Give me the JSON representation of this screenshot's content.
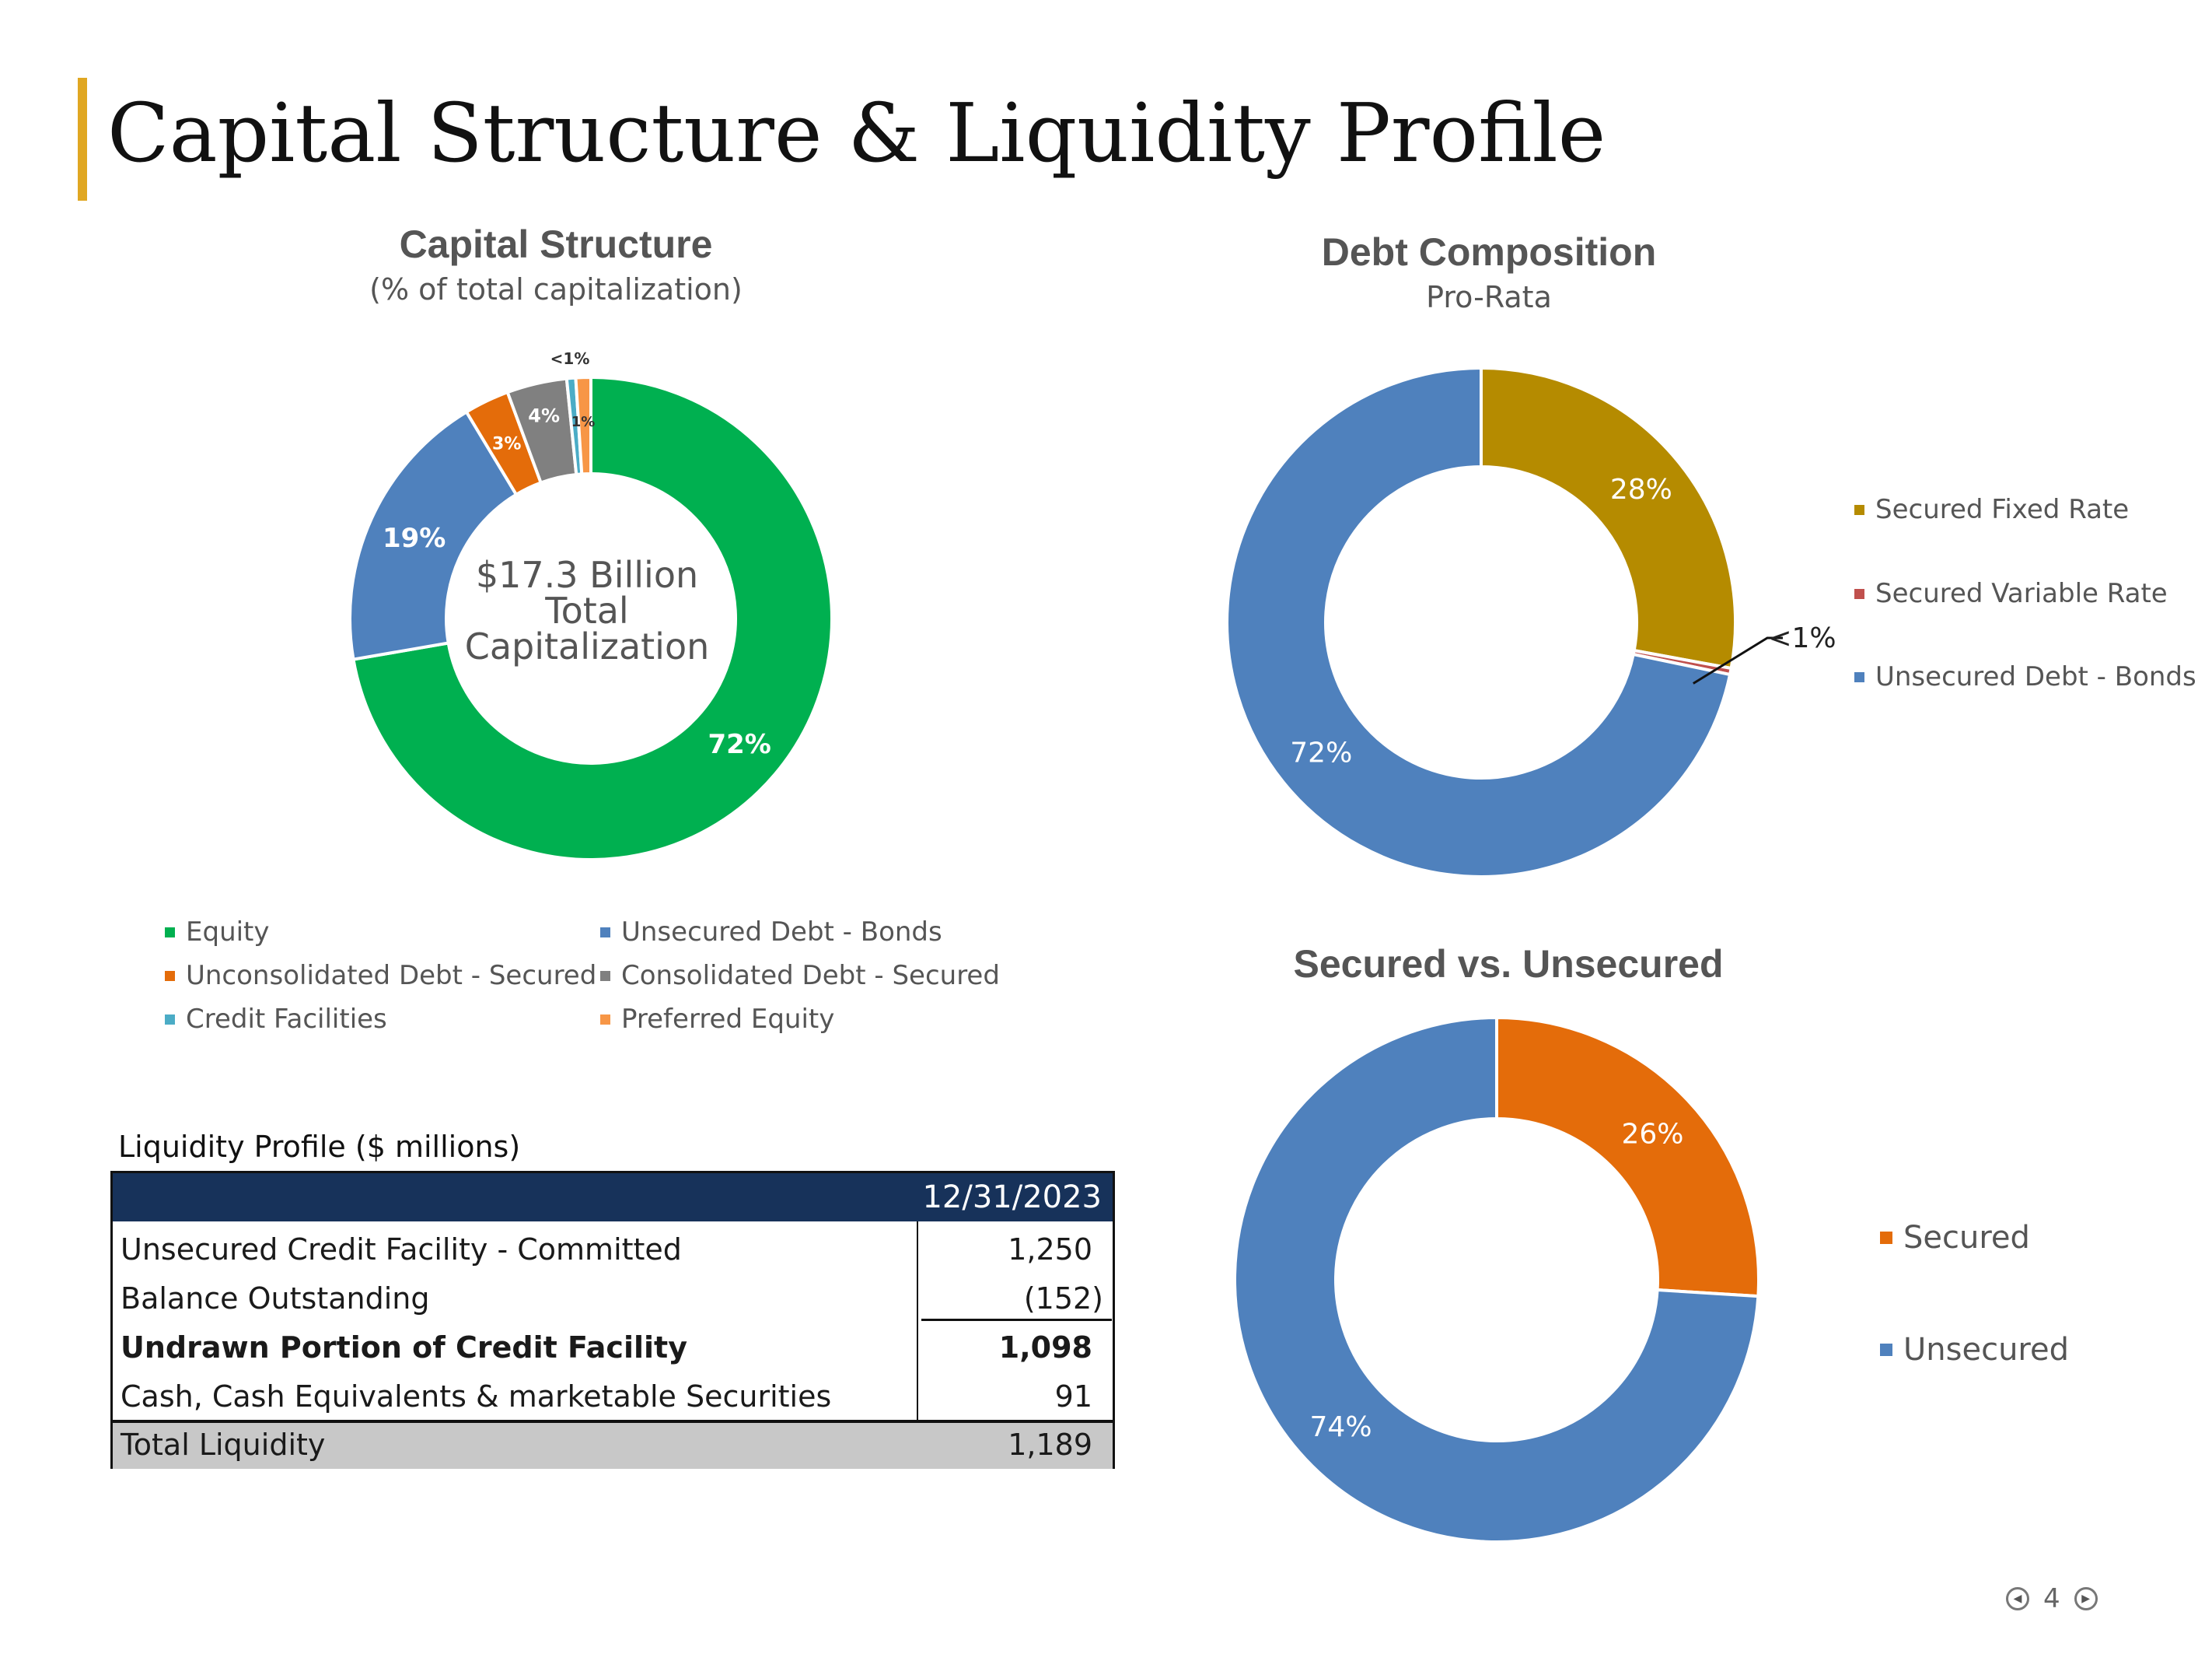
{
  "page": {
    "title": "Capital Structure & Liquidity Profile",
    "page_number": "4",
    "accent_color": "#e0a722"
  },
  "chart_data": [
    {
      "type": "pie",
      "donut": true,
      "title": "Capital Structure",
      "subtitle": "(% of total capitalization)",
      "center_label": [
        "$17.3 Billion",
        "Total",
        "Capitalization"
      ],
      "legend_position": "bottom",
      "categories": [
        "Equity",
        "Unsecured Debt - Bonds",
        "Unconsolidated Debt - Secured",
        "Consolidated Debt - Secured",
        "Credit Facilities",
        "Preferred Equity"
      ],
      "values": [
        72,
        19,
        3,
        4,
        0.6,
        1
      ],
      "data_labels": [
        "72%",
        "19%",
        "3%",
        "4%",
        "<1%",
        "1%"
      ],
      "colors": [
        "#00b050",
        "#4f81bd",
        "#e46c0a",
        "#808080",
        "#4bacc6",
        "#f79646"
      ]
    },
    {
      "type": "pie",
      "donut": true,
      "title": "Debt Composition",
      "subtitle": "Pro-Rata",
      "legend_position": "right",
      "categories": [
        "Secured Fixed Rate",
        "Secured Variable Rate",
        "Unsecured Debt - Bonds"
      ],
      "values": [
        28,
        0.4,
        72
      ],
      "data_labels": [
        "28%",
        "<1%",
        "72%"
      ],
      "colors": [
        "#b58b00",
        "#c0504d",
        "#4f81bd"
      ]
    },
    {
      "type": "pie",
      "donut": true,
      "title": "Secured vs. Unsecured",
      "legend_position": "right",
      "categories": [
        "Secured",
        "Unsecured"
      ],
      "values": [
        26,
        74
      ],
      "data_labels": [
        "26%",
        "74%"
      ],
      "colors": [
        "#e46c0a",
        "#4f81bd"
      ]
    }
  ],
  "liquidity": {
    "title": "Liquidity Profile ($ millions)",
    "column_header": "12/31/2023",
    "header_color": "#17325a",
    "rows": [
      {
        "label": "Unsecured Credit Facility - Committed",
        "value": "1,250"
      },
      {
        "label": "Balance Outstanding",
        "value": "(152)"
      },
      {
        "label": "Undrawn Portion of Credit Facility",
        "value": "1,098"
      },
      {
        "label": "Cash, Cash Equivalents & marketable Securities",
        "value": "91"
      }
    ],
    "total": {
      "label": "Total Liquidity",
      "value": "1,189"
    }
  }
}
